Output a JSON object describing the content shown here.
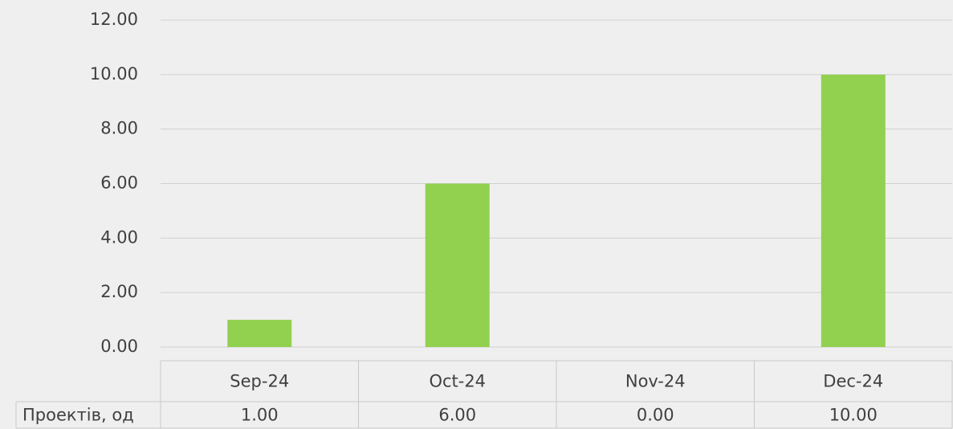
{
  "chart_data": {
    "type": "bar",
    "categories": [
      "Sep-24",
      "Oct-24",
      "Nov-24",
      "Dec-24"
    ],
    "series": [
      {
        "name": "Проектів, од",
        "color": "#92d050",
        "values": [
          1,
          6,
          0,
          10
        ],
        "value_labels": [
          "1.00",
          "6.00",
          "0.00",
          "10.00"
        ]
      }
    ],
    "ylim": [
      0,
      12
    ],
    "yticks": [
      {
        "value": 0,
        "label": "0.00"
      },
      {
        "value": 2,
        "label": "2.00"
      },
      {
        "value": 4,
        "label": "4.00"
      },
      {
        "value": 6,
        "label": "6.00"
      },
      {
        "value": 8,
        "label": "8.00"
      },
      {
        "value": 10,
        "label": "10.00"
      },
      {
        "value": 12,
        "label": "12.00"
      }
    ],
    "grid": true
  }
}
